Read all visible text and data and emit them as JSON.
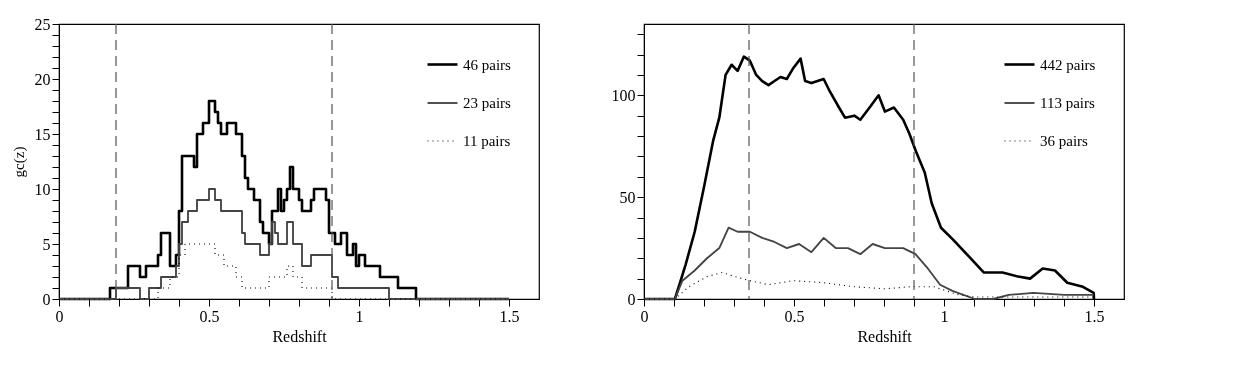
{
  "chart_data": [
    {
      "type": "step",
      "xlabel": "Redshift",
      "ylabel": "gc(z)",
      "xlim": [
        0,
        1.6
      ],
      "ylim": [
        0,
        25
      ],
      "xticks": [
        0,
        {
          "value": 0.1,
          "label": null
        },
        {
          "value": 0.2,
          "label": null
        },
        {
          "value": 0.3,
          "label": null
        },
        {
          "value": 0.4,
          "label": null
        },
        0.5,
        {
          "value": 0.6,
          "label": null
        },
        {
          "value": 0.7,
          "label": null
        },
        {
          "value": 0.8,
          "label": null
        },
        {
          "value": 0.9,
          "label": null
        },
        1,
        {
          "value": 1.1,
          "label": null
        },
        {
          "value": 1.2,
          "label": null
        },
        {
          "value": 1.3,
          "label": null
        },
        {
          "value": 1.4,
          "label": null
        },
        1.5
      ],
      "yticks": [
        0,
        {
          "value": 1,
          "label": null
        },
        {
          "value": 2,
          "label": null
        },
        {
          "value": 3,
          "label": null
        },
        {
          "value": 4,
          "label": null
        },
        5,
        {
          "value": 6,
          "label": null
        },
        {
          "value": 7,
          "label": null
        },
        {
          "value": 8,
          "label": null
        },
        {
          "value": 9,
          "label": null
        },
        10,
        {
          "value": 11,
          "label": null
        },
        {
          "value": 12,
          "label": null
        },
        {
          "value": 13,
          "label": null
        },
        {
          "value": 14,
          "label": null
        },
        15,
        {
          "value": 16,
          "label": null
        },
        {
          "value": 17,
          "label": null
        },
        {
          "value": 18,
          "label": null
        },
        {
          "value": 19,
          "label": null
        },
        20,
        {
          "value": 21,
          "label": null
        },
        {
          "value": 22,
          "label": null
        },
        {
          "value": 23,
          "label": null
        },
        {
          "value": 24,
          "label": null
        },
        25
      ],
      "grid": false,
      "legend": "top right",
      "ref_lines": [
        {
          "axis": "x",
          "value": 0.19,
          "color": "#555555",
          "line_style": "dashed"
        },
        {
          "axis": "x",
          "value": 0.91,
          "color": "#555555",
          "line_style": "dashed"
        }
      ],
      "series": [
        {
          "name": "46  pairs",
          "color": "#000000",
          "line_style": "solid",
          "x": [
            0,
            0.17,
            0.23,
            0.27,
            0.29,
            0.33,
            0.34,
            0.37,
            0.39,
            0.4,
            0.41,
            0.45,
            0.46,
            0.48,
            0.5,
            0.52,
            0.53,
            0.54,
            0.56,
            0.59,
            0.61,
            0.62,
            0.63,
            0.65,
            0.67,
            0.68,
            0.7,
            0.71,
            0.73,
            0.74,
            0.75,
            0.76,
            0.77,
            0.78,
            0.8,
            0.81,
            0.84,
            0.85,
            0.89,
            0.9,
            0.92,
            0.94,
            0.96,
            0.98,
            0.99,
            1.0,
            1.02,
            1.07,
            1.13,
            1.19,
            1.5
          ],
          "values": [
            0,
            1,
            3,
            2,
            3,
            4,
            6,
            3,
            4,
            8,
            13,
            12,
            15,
            16,
            18,
            17,
            16,
            15,
            16,
            15,
            13,
            11,
            10,
            9,
            7,
            6,
            5,
            8,
            10,
            8,
            9,
            10,
            12,
            10,
            9,
            8,
            9,
            10,
            9,
            6,
            5,
            6,
            4,
            5,
            3,
            4,
            3,
            2,
            1,
            0,
            0
          ]
        },
        {
          "name": "23  pairs",
          "color": "#444444",
          "line_style": "solid",
          "x": [
            0,
            0.19,
            0.27,
            0.3,
            0.34,
            0.39,
            0.4,
            0.41,
            0.43,
            0.46,
            0.5,
            0.52,
            0.54,
            0.61,
            0.62,
            0.67,
            0.7,
            0.71,
            0.72,
            0.73,
            0.76,
            0.78,
            0.81,
            0.84,
            0.91,
            0.93,
            1.1,
            1.5
          ],
          "values": [
            0,
            1,
            0,
            1,
            2,
            3,
            5,
            7,
            8,
            9,
            10,
            9,
            8,
            6,
            5,
            4,
            5,
            7,
            6,
            5,
            7,
            5,
            3,
            4,
            2,
            1,
            0,
            0
          ]
        },
        {
          "name": "11  pairs",
          "color": "#000000",
          "line_style": "dotted",
          "x": [
            0,
            0.33,
            0.37,
            0.4,
            0.42,
            0.52,
            0.55,
            0.59,
            0.61,
            0.7,
            0.76,
            0.78,
            0.81,
            0.91,
            1.5
          ],
          "values": [
            0,
            1,
            2,
            4,
            5,
            4,
            3,
            2,
            1,
            2,
            3,
            2,
            1,
            0,
            0
          ]
        }
      ]
    },
    {
      "type": "line",
      "xlabel": "Redshift",
      "xlim": [
        0,
        1.6
      ],
      "ylim": [
        0,
        135
      ],
      "xticks": [
        0,
        {
          "value": 0.1,
          "label": null
        },
        {
          "value": 0.2,
          "label": null
        },
        {
          "value": 0.3,
          "label": null
        },
        {
          "value": 0.4,
          "label": null
        },
        0.5,
        {
          "value": 0.6,
          "label": null
        },
        {
          "value": 0.7,
          "label": null
        },
        {
          "value": 0.8,
          "label": null
        },
        {
          "value": 0.9,
          "label": null
        },
        1,
        {
          "value": 1.1,
          "label": null
        },
        {
          "value": 1.2,
          "label": null
        },
        {
          "value": 1.3,
          "label": null
        },
        {
          "value": 1.4,
          "label": null
        },
        1.5
      ],
      "yticks": [
        0,
        {
          "value": 10,
          "label": null
        },
        {
          "value": 20,
          "label": null
        },
        {
          "value": 30,
          "label": null
        },
        {
          "value": 40,
          "label": null
        },
        50,
        {
          "value": 60,
          "label": null
        },
        {
          "value": 70,
          "label": null
        },
        {
          "value": 80,
          "label": null
        },
        {
          "value": 90,
          "label": null
        },
        100,
        {
          "value": 110,
          "label": null
        },
        {
          "value": 120,
          "label": null
        },
        {
          "value": 130,
          "label": null
        }
      ],
      "grid": false,
      "legend": "top right",
      "ref_lines": [
        {
          "axis": "x",
          "value": 0.35,
          "color": "#555555",
          "line_style": "dashed"
        },
        {
          "axis": "x",
          "value": 0.9,
          "color": "#555555",
          "line_style": "dashed"
        }
      ],
      "series": [
        {
          "name": "442  pairs",
          "color": "#000000",
          "line_style": "solid",
          "x": [
            0,
            0.103,
            0.118,
            0.139,
            0.169,
            0.2,
            0.231,
            0.251,
            0.272,
            0.292,
            0.312,
            0.333,
            0.353,
            0.374,
            0.394,
            0.415,
            0.435,
            0.455,
            0.476,
            0.496,
            0.522,
            0.537,
            0.558,
            0.599,
            0.619,
            0.65,
            0.67,
            0.701,
            0.721,
            0.752,
            0.782,
            0.803,
            0.833,
            0.864,
            0.885,
            0.905,
            0.936,
            0.959,
            0.99,
            1.031,
            1.082,
            1.133,
            1.195,
            1.247,
            1.287,
            1.329,
            1.37,
            1.411,
            1.463,
            1.499,
            1.5
          ],
          "values": [
            0,
            0,
            7,
            17,
            33,
            55,
            78,
            89,
            110,
            115,
            112,
            119,
            117,
            110,
            107,
            105,
            107,
            109,
            108,
            113,
            118,
            107,
            106,
            108,
            102,
            94,
            89,
            90,
            88,
            94,
            100,
            92,
            94,
            88,
            81,
            73,
            62,
            47,
            35,
            29,
            21,
            13,
            13,
            11,
            10,
            15,
            14,
            8,
            6,
            3,
            0
          ]
        },
        {
          "name": "113  pairs",
          "color": "#444444",
          "line_style": "solid",
          "x": [
            0,
            0.103,
            0.128,
            0.169,
            0.21,
            0.251,
            0.282,
            0.312,
            0.353,
            0.394,
            0.435,
            0.476,
            0.517,
            0.558,
            0.599,
            0.639,
            0.68,
            0.721,
            0.762,
            0.803,
            0.864,
            0.905,
            0.946,
            0.987,
            1.028,
            1.103,
            1.164,
            1.216,
            1.298,
            1.401,
            1.499
          ],
          "values": [
            0,
            0,
            9,
            14,
            20,
            25,
            35,
            33,
            33,
            30,
            28,
            25,
            27,
            23,
            30,
            25,
            25,
            22,
            27,
            25,
            25,
            22,
            15,
            7,
            4,
            0,
            0,
            2,
            3,
            2,
            2
          ]
        },
        {
          "name": "36  pairs",
          "color": "#000000",
          "line_style": "dotted",
          "x": [
            0,
            0.103,
            0.149,
            0.21,
            0.261,
            0.302,
            0.353,
            0.415,
            0.496,
            0.599,
            0.701,
            0.803,
            0.885,
            0.966,
            1.05,
            1.1,
            1.5
          ],
          "values": [
            0,
            0,
            6,
            11,
            13,
            11,
            9,
            7,
            9,
            8,
            6,
            5,
            6,
            6,
            2,
            1,
            1
          ]
        }
      ]
    }
  ]
}
